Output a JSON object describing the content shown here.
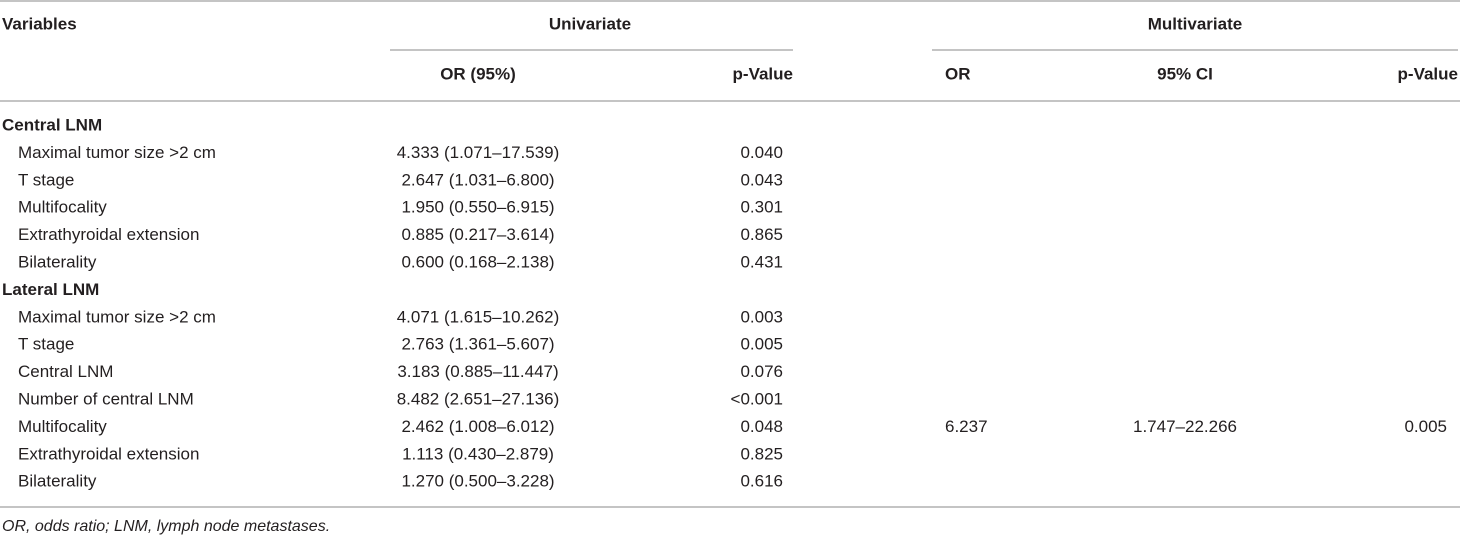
{
  "header": {
    "variables": "Variables",
    "univariate": "Univariate",
    "multivariate": "Multivariate",
    "columns": [
      "OR (95%)",
      "p-Value",
      "OR",
      "95% CI",
      "p-Value"
    ]
  },
  "groups": [
    {
      "title": "Central LNM",
      "rows": [
        [
          "Maximal tumor size >2 cm",
          "4.333 (1.071–17.539)",
          "0.040"
        ],
        [
          "T stage",
          "2.647 (1.031–6.800)",
          "0.043"
        ],
        [
          "Multifocality",
          "1.950 (0.550–6.915)",
          "0.301"
        ],
        [
          "Extrathyroidal extension",
          "0.885 (0.217–3.614)",
          "0.865"
        ],
        [
          "Bilaterality",
          "0.600 (0.168–2.138)",
          "0.431"
        ]
      ]
    },
    {
      "title": "Lateral LNM",
      "rows": [
        [
          "Maximal tumor size >2 cm",
          "4.071 (1.615–10.262)",
          "0.003"
        ],
        [
          "T stage",
          "2.763 (1.361–5.607)",
          "0.005"
        ],
        [
          "Central LNM",
          "3.183 (0.885–11.447)",
          "0.076"
        ],
        [
          "Number of central LNM",
          "8.482 (2.651–27.136)",
          "<0.001"
        ],
        [
          "Multifocality",
          "2.462 (1.008–6.012)",
          "0.048",
          "6.237",
          "1.747–22.266",
          "0.005"
        ],
        [
          "Extrathyroidal extension",
          "1.113 (0.430–2.879)",
          "0.825"
        ],
        [
          "Bilaterality",
          "1.270 (0.500–3.228)",
          "0.616"
        ]
      ]
    }
  ],
  "footnote": "OR, odds ratio; LNM, lymph node metastases."
}
